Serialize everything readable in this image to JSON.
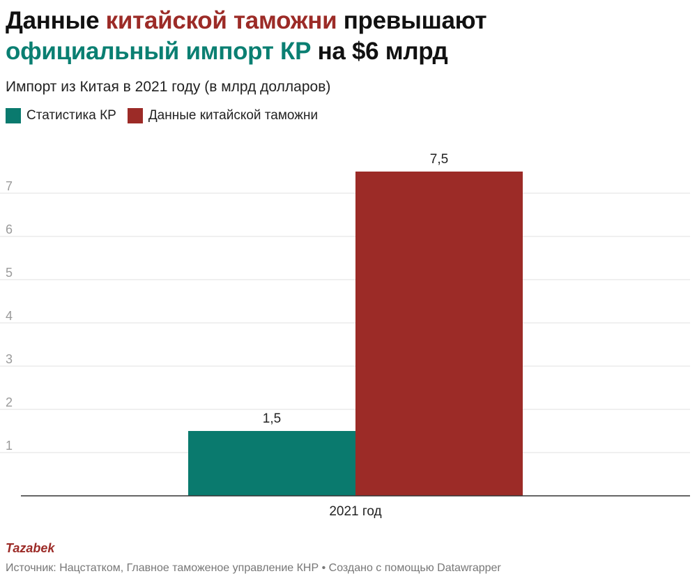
{
  "title": {
    "part1": "Данные ",
    "part2": "китайской таможни",
    "part3": " превышают",
    "part4": "официальный импорт КР",
    "part5": " на $6 млрд"
  },
  "subtitle": "Импорт из Китая в 2021 году (в млрд долларов)",
  "legend": [
    {
      "label": "Статистика КР",
      "color": "#0a7a6e"
    },
    {
      "label": "Данные китайской таможни",
      "color": "#9c2b27"
    }
  ],
  "chart_data": {
    "type": "bar",
    "categories": [
      "2021 год"
    ],
    "series": [
      {
        "name": "Статистика КР",
        "values": [
          1.5
        ],
        "labels": [
          "1,5"
        ],
        "color": "#0a7a6e"
      },
      {
        "name": "Данные китайской таможни",
        "values": [
          7.5
        ],
        "labels": [
          "7,5"
        ],
        "color": "#9c2b27"
      }
    ],
    "ylim": [
      0,
      7.5
    ],
    "yticks": [
      1,
      2,
      3,
      4,
      5,
      6,
      7
    ],
    "grid": true,
    "legend_position": "top-left"
  },
  "footer": {
    "brand": "Tazabek",
    "source": "Источник: Нацстатком, Главное таможеное управление КНР • Создано с помощью Datawrapper"
  }
}
